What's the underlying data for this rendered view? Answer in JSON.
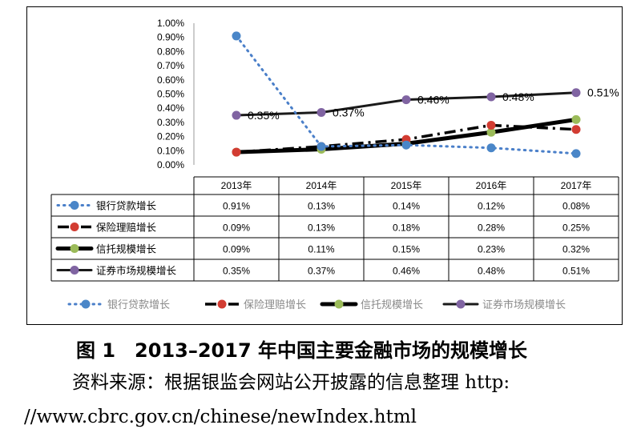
{
  "chart_data": {
    "type": "line",
    "categories": [
      "2013年",
      "2014年",
      "2015年",
      "2016年",
      "2017年"
    ],
    "series": [
      {
        "name": "银行贷款增长",
        "values": [
          0.91,
          0.13,
          0.14,
          0.12,
          0.08
        ],
        "labels": [
          "0.91%",
          "0.13%",
          "0.14%",
          "0.12%",
          "0.08%"
        ],
        "color": "#4a7fc9",
        "marker_color": "#4a86c8"
      },
      {
        "name": "保险理赔增长",
        "values": [
          0.09,
          0.13,
          0.18,
          0.28,
          0.25
        ],
        "labels": [
          "0.09%",
          "0.13%",
          "0.18%",
          "0.28%",
          "0.25%"
        ],
        "color": "#000000",
        "marker_color": "#d23c32"
      },
      {
        "name": "信托规模增长",
        "values": [
          0.09,
          0.11,
          0.15,
          0.23,
          0.32
        ],
        "labels": [
          "0.09%",
          "0.11%",
          "0.15%",
          "0.23%",
          "0.32%"
        ],
        "color": "#000000",
        "marker_color": "#9bbb59"
      },
      {
        "name": "证券市场规模增长",
        "values": [
          0.35,
          0.37,
          0.46,
          0.48,
          0.51
        ],
        "labels": [
          "0.35%",
          "0.37%",
          "0.46%",
          "0.48%",
          "0.51%"
        ],
        "color": "#1a1a1a",
        "marker_color": "#8064a2"
      }
    ],
    "data_labels": [
      "0.35%",
      "0.37%",
      "0.46%",
      "0.48%",
      "0.51%"
    ],
    "yticks": [
      "0.00%",
      "0.10%",
      "0.20%",
      "0.30%",
      "0.40%",
      "0.50%",
      "0.60%",
      "0.70%",
      "0.80%",
      "0.90%",
      "1.00%"
    ],
    "ylim": [
      0,
      1.0
    ],
    "unit": "%",
    "grid": false,
    "data_table": true,
    "legend_position": "bottom"
  },
  "caption": "图 1　2013–2017 年中国主要金融市场的规模增长",
  "source_line1": "资料来源：根据银监会网站公开披露的信息整理 http:",
  "source_line2": "//www.cbrc.gov.cn/chinese/newIndex.html"
}
